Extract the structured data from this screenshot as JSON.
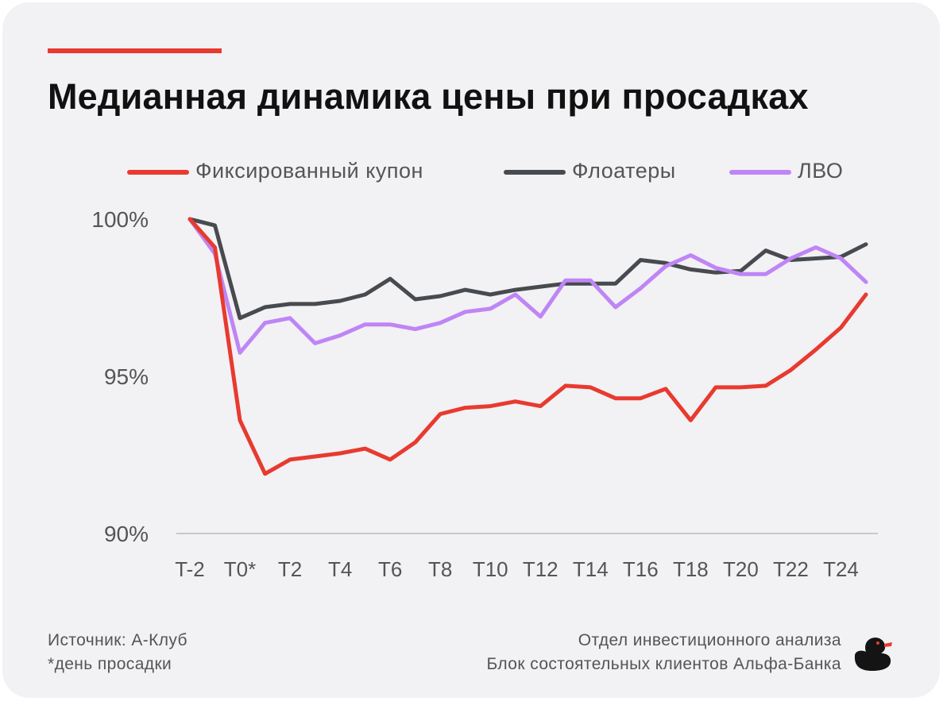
{
  "header": {
    "title": "Медианная динамика цены при просадках"
  },
  "colors": {
    "accent": "#e83a2f",
    "background": "#f2f1f4",
    "fixed": "#e83a2f",
    "floaters": "#474b4f",
    "lbo": "#bf85f5"
  },
  "footer": {
    "source": "Источник: А-Клуб",
    "note": "*день просадки",
    "dept": "Отдел инвестиционного анализа",
    "block": "Блок состоятельных клиентов Альфа-Банка",
    "logo_icon": "duck-logo-icon"
  },
  "chart_data": {
    "type": "line",
    "title": "Медианная динамика цены при просадках",
    "x": [
      "T-2",
      "T-1",
      "T0*",
      "T1",
      "T2",
      "T3",
      "T4",
      "T5",
      "T6",
      "T7",
      "T8",
      "T9",
      "T10",
      "T11",
      "T12",
      "T13",
      "T14",
      "T15",
      "T16",
      "T17",
      "T18",
      "T19",
      "T20",
      "T21",
      "T22",
      "T23",
      "T24",
      "T25"
    ],
    "x_tick_labels": [
      "T-2",
      "T0*",
      "T2",
      "T4",
      "T6",
      "T8",
      "T10",
      "T12",
      "T14",
      "T16",
      "T18",
      "T20",
      "T22",
      "T24"
    ],
    "y_tick_labels": [
      "100%",
      "95%",
      "90%"
    ],
    "y_ticks": [
      100,
      95,
      90
    ],
    "ylim": [
      90,
      100
    ],
    "grid": false,
    "legend_position": "top",
    "series": [
      {
        "name": "Фиксированный купон",
        "color": "#e83a2f",
        "values": [
          100.0,
          99.1,
          93.6,
          91.9,
          92.35,
          92.45,
          92.55,
          92.7,
          92.35,
          92.9,
          93.8,
          94.0,
          94.05,
          94.2,
          94.05,
          94.7,
          94.65,
          94.3,
          94.3,
          94.6,
          93.6,
          94.65,
          94.65,
          94.7,
          95.2,
          95.85,
          96.55,
          97.6
        ]
      },
      {
        "name": "Флоатеры",
        "color": "#474b4f",
        "values": [
          100.0,
          99.8,
          96.85,
          97.2,
          97.3,
          97.3,
          97.4,
          97.6,
          98.1,
          97.45,
          97.55,
          97.75,
          97.6,
          97.75,
          97.85,
          97.95,
          97.95,
          97.95,
          98.7,
          98.6,
          98.4,
          98.3,
          98.35,
          99.0,
          98.7,
          98.75,
          98.8,
          99.2
        ]
      },
      {
        "name": "ЛВО",
        "color": "#bf85f5",
        "values": [
          100.0,
          98.9,
          95.75,
          96.7,
          96.85,
          96.05,
          96.3,
          96.65,
          96.65,
          96.5,
          96.7,
          97.05,
          97.15,
          97.6,
          96.9,
          98.05,
          98.05,
          97.2,
          97.8,
          98.5,
          98.85,
          98.45,
          98.25,
          98.25,
          98.75,
          99.1,
          98.75,
          98.0
        ]
      }
    ]
  }
}
